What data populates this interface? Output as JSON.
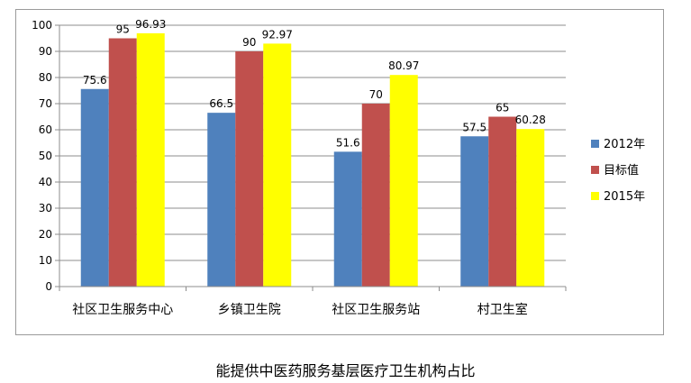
{
  "chart_data": {
    "type": "bar",
    "title": "能提供中医药服务基层医疗卫生机构占比",
    "categories": [
      "社区卫生服务中心",
      "乡镇卫生院",
      "社区卫生服务站",
      "村卫生室"
    ],
    "series": [
      {
        "name": "2012年",
        "color": "#4f81bd",
        "values": [
          75.6,
          66.5,
          51.6,
          57.5
        ],
        "labels": [
          "75.6",
          "66.5",
          "51.6",
          "57.5"
        ]
      },
      {
        "name": "目标值",
        "color": "#c0504d",
        "values": [
          95,
          90,
          70,
          65
        ],
        "labels": [
          "95",
          "90",
          "70",
          "65"
        ]
      },
      {
        "name": "2015年",
        "color": "#ffff00",
        "values": [
          96.93,
          92.97,
          80.97,
          60.28
        ],
        "labels": [
          "96.93",
          "92.97",
          "80.97",
          "60.28"
        ]
      }
    ],
    "ylim": [
      0,
      100
    ],
    "yticks": [
      0,
      10,
      20,
      30,
      40,
      50,
      60,
      70,
      80,
      90,
      100
    ],
    "grid": true,
    "legend_position": "right"
  }
}
